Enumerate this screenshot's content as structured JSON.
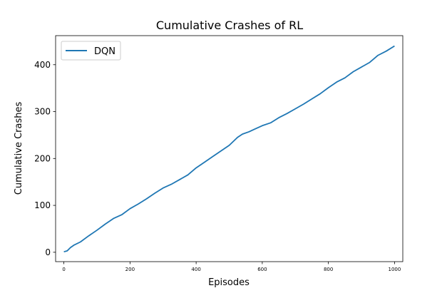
{
  "chart_data": {
    "type": "line",
    "title": "Cumulative Crashes of RL",
    "xlabel": "Episodes",
    "ylabel": "Cumulative Crashes",
    "xlim": [
      -25,
      1025
    ],
    "ylim": [
      -20,
      462
    ],
    "xticks": [
      0,
      200,
      400,
      600,
      800,
      1000
    ],
    "yticks": [
      0,
      100,
      200,
      300,
      400
    ],
    "grid": false,
    "legend": "upper-left",
    "series": [
      {
        "name": "DQN",
        "color": "#1f77b4",
        "x": [
          0,
          10,
          20,
          30,
          50,
          75,
          100,
          125,
          150,
          175,
          200,
          225,
          250,
          275,
          300,
          325,
          350,
          375,
          400,
          425,
          450,
          475,
          500,
          525,
          540,
          560,
          575,
          600,
          625,
          650,
          675,
          700,
          725,
          750,
          775,
          800,
          825,
          850,
          875,
          900,
          925,
          950,
          975,
          1000
        ],
        "y": [
          1,
          3,
          10,
          15,
          22,
          35,
          47,
          60,
          72,
          80,
          93,
          103,
          114,
          126,
          137,
          145,
          155,
          165,
          180,
          192,
          204,
          216,
          228,
          245,
          252,
          257,
          262,
          270,
          276,
          287,
          296,
          306,
          316,
          327,
          338,
          351,
          363,
          372,
          385,
          395,
          405,
          420,
          429,
          440
        ]
      }
    ]
  }
}
